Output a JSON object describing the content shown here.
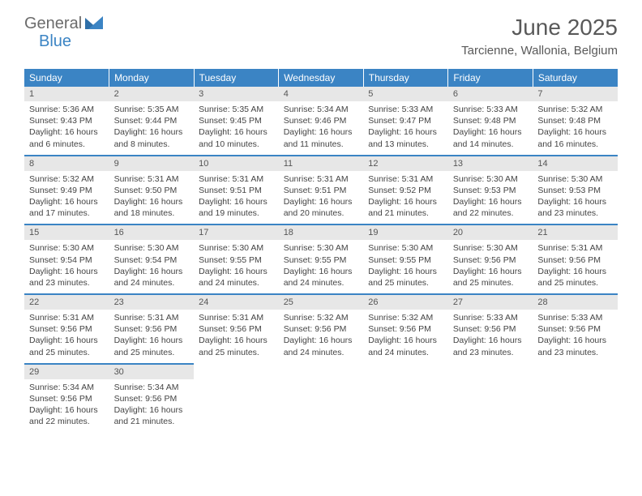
{
  "brand": {
    "part1": "General",
    "part2": "Blue"
  },
  "title": "June 2025",
  "location": "Tarcienne, Wallonia, Belgium",
  "colors": {
    "header_bg": "#3b84c4",
    "header_text": "#ffffff",
    "daynum_bg": "#e7e7e7",
    "daynum_text": "#555555",
    "body_text": "#444444",
    "title_text": "#595959",
    "row_border": "#3b84c4"
  },
  "fonts": {
    "title_size": 28,
    "location_size": 15,
    "dayheader_size": 12,
    "daynum_size": 11,
    "body_size": 10.5
  },
  "daysOfWeek": [
    "Sunday",
    "Monday",
    "Tuesday",
    "Wednesday",
    "Thursday",
    "Friday",
    "Saturday"
  ],
  "weeks": [
    [
      {
        "n": "1",
        "sr": "5:36 AM",
        "ss": "9:43 PM",
        "dl": "16 hours and 6 minutes."
      },
      {
        "n": "2",
        "sr": "5:35 AM",
        "ss": "9:44 PM",
        "dl": "16 hours and 8 minutes."
      },
      {
        "n": "3",
        "sr": "5:35 AM",
        "ss": "9:45 PM",
        "dl": "16 hours and 10 minutes."
      },
      {
        "n": "4",
        "sr": "5:34 AM",
        "ss": "9:46 PM",
        "dl": "16 hours and 11 minutes."
      },
      {
        "n": "5",
        "sr": "5:33 AM",
        "ss": "9:47 PM",
        "dl": "16 hours and 13 minutes."
      },
      {
        "n": "6",
        "sr": "5:33 AM",
        "ss": "9:48 PM",
        "dl": "16 hours and 14 minutes."
      },
      {
        "n": "7",
        "sr": "5:32 AM",
        "ss": "9:48 PM",
        "dl": "16 hours and 16 minutes."
      }
    ],
    [
      {
        "n": "8",
        "sr": "5:32 AM",
        "ss": "9:49 PM",
        "dl": "16 hours and 17 minutes."
      },
      {
        "n": "9",
        "sr": "5:31 AM",
        "ss": "9:50 PM",
        "dl": "16 hours and 18 minutes."
      },
      {
        "n": "10",
        "sr": "5:31 AM",
        "ss": "9:51 PM",
        "dl": "16 hours and 19 minutes."
      },
      {
        "n": "11",
        "sr": "5:31 AM",
        "ss": "9:51 PM",
        "dl": "16 hours and 20 minutes."
      },
      {
        "n": "12",
        "sr": "5:31 AM",
        "ss": "9:52 PM",
        "dl": "16 hours and 21 minutes."
      },
      {
        "n": "13",
        "sr": "5:30 AM",
        "ss": "9:53 PM",
        "dl": "16 hours and 22 minutes."
      },
      {
        "n": "14",
        "sr": "5:30 AM",
        "ss": "9:53 PM",
        "dl": "16 hours and 23 minutes."
      }
    ],
    [
      {
        "n": "15",
        "sr": "5:30 AM",
        "ss": "9:54 PM",
        "dl": "16 hours and 23 minutes."
      },
      {
        "n": "16",
        "sr": "5:30 AM",
        "ss": "9:54 PM",
        "dl": "16 hours and 24 minutes."
      },
      {
        "n": "17",
        "sr": "5:30 AM",
        "ss": "9:55 PM",
        "dl": "16 hours and 24 minutes."
      },
      {
        "n": "18",
        "sr": "5:30 AM",
        "ss": "9:55 PM",
        "dl": "16 hours and 24 minutes."
      },
      {
        "n": "19",
        "sr": "5:30 AM",
        "ss": "9:55 PM",
        "dl": "16 hours and 25 minutes."
      },
      {
        "n": "20",
        "sr": "5:30 AM",
        "ss": "9:56 PM",
        "dl": "16 hours and 25 minutes."
      },
      {
        "n": "21",
        "sr": "5:31 AM",
        "ss": "9:56 PM",
        "dl": "16 hours and 25 minutes."
      }
    ],
    [
      {
        "n": "22",
        "sr": "5:31 AM",
        "ss": "9:56 PM",
        "dl": "16 hours and 25 minutes."
      },
      {
        "n": "23",
        "sr": "5:31 AM",
        "ss": "9:56 PM",
        "dl": "16 hours and 25 minutes."
      },
      {
        "n": "24",
        "sr": "5:31 AM",
        "ss": "9:56 PM",
        "dl": "16 hours and 25 minutes."
      },
      {
        "n": "25",
        "sr": "5:32 AM",
        "ss": "9:56 PM",
        "dl": "16 hours and 24 minutes."
      },
      {
        "n": "26",
        "sr": "5:32 AM",
        "ss": "9:56 PM",
        "dl": "16 hours and 24 minutes."
      },
      {
        "n": "27",
        "sr": "5:33 AM",
        "ss": "9:56 PM",
        "dl": "16 hours and 23 minutes."
      },
      {
        "n": "28",
        "sr": "5:33 AM",
        "ss": "9:56 PM",
        "dl": "16 hours and 23 minutes."
      }
    ],
    [
      {
        "n": "29",
        "sr": "5:34 AM",
        "ss": "9:56 PM",
        "dl": "16 hours and 22 minutes."
      },
      {
        "n": "30",
        "sr": "5:34 AM",
        "ss": "9:56 PM",
        "dl": "16 hours and 21 minutes."
      },
      null,
      null,
      null,
      null,
      null
    ]
  ],
  "labels": {
    "sunrise": "Sunrise:",
    "sunset": "Sunset:",
    "daylight": "Daylight:"
  }
}
